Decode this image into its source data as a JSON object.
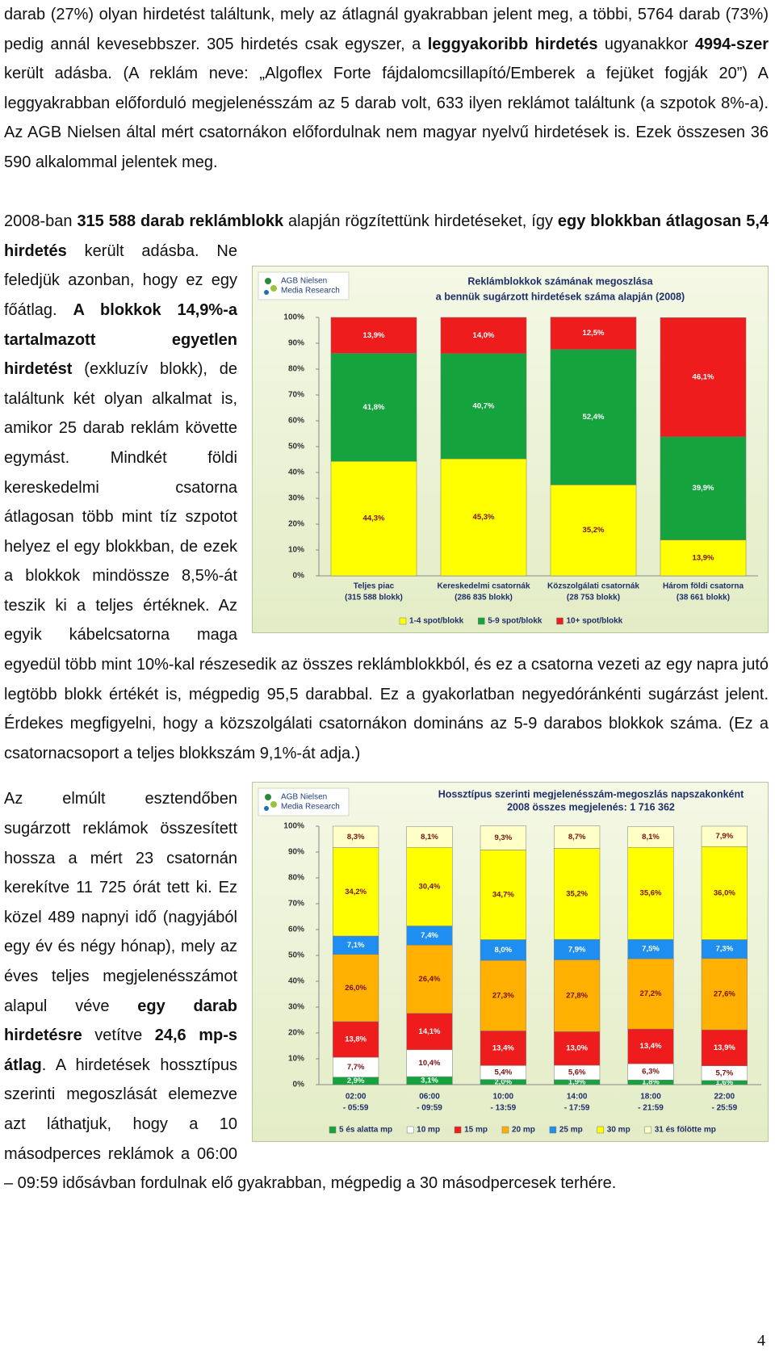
{
  "paragraphs": [
    [
      "darab (27%) olyan hirdetést találtunk, mely az átlagnál gyakrabban jelent meg, a többi, 5764 darab (73%) pedig annál kevesebbszer. 305 hirdetés csak egyszer, a ",
      "leggyakoribb hirdetés",
      " ugyanakkor ",
      "4994-szer",
      " került adásba. (A reklám neve: „Algoflex Forte fájdalomcsillapító/Emberek a fejüket fogják 20”) A leggyakrabban előforduló megjelenésszám az 5 darab volt, 633 ilyen reklámot találtunk (a szpotok 8%-a). Az AGB Nielsen által mért csatornákon előfordulnak nem magyar nyelvű hirdetések is. Ezek összesen 36 590 alkalommal jelentek meg."
    ],
    [
      "2008-ban ",
      "315 588 darab reklámblokk",
      " alapján rögzítettünk hirdetéseket, így ",
      "egy blokkban átlagosan 5,4 hirdetés",
      " került adásba. Ne feledjük azonban, hogy ez egy főátlag. ",
      "A blokkok 14,9%-a tartalmazott egyetlen hirdetést",
      " (exkluzív blokk), de találtunk két olyan alkalmat is, amikor 25 darab reklám követte egymást. Mindkét földi kereskedelmi csatorna átlagosan több mint tíz szpotot helyez el egy blokkban, de ezek a blokkok mindössze 8,5%-át teszik ki a teljes értéknek. Az egyik kábelcsatorna maga egyedül több mint 10%-kal részesedik az összes reklámblokkból, és ez a csatorna vezeti az egy napra jutó legtöbb blokk értékét is, mégpedig 95,5 darabbal. Ez a gyakorlatban negyedóránkénti sugárzást jelent. Érdekes megfigyelni, hogy a közszolgálati csatornákon domináns az 5-9 darabos blokkok száma. (Ez a csatornacsoport a teljes blokkszám 9,1%-át adja.)"
    ],
    [
      "Az elmúlt esztendőben sugárzott reklámok összesített hossza a mért 23 csatornán kerekítve 11 725 órát tett ki. Ez közel 489 napnyi idő (nagyjából egy év és négy hónap), mely az éves teljes megjelenésszámot alapul véve ",
      "egy darab hirdetésre",
      " vetítve ",
      "24,6 mp-s átlag",
      ". A hirdetések hossztípus szerinti megoszlását elemezve azt láthatjuk, hogy a 10 másodperces reklámok a 06:00 – 09:59 idősávban fordulnak elő gyakrabban, mégpedig a 30 másodpercesek terhére."
    ]
  ],
  "page_number": "4",
  "chart_data": [
    {
      "type": "bar",
      "stacked": true,
      "logo": [
        "AGB Nielsen",
        "Media Research"
      ],
      "title": [
        "Reklámblokkok számának megoszlása",
        "a bennük sugárzott hirdetések száma alapján (2008)"
      ],
      "categories": [
        [
          "Teljes piac",
          "(315 588 blokk)"
        ],
        [
          "Kereskedelmi csatornák",
          "(286 835 blokk)"
        ],
        [
          "Közszolgálati csatornák",
          "(28 753 blokk)"
        ],
        [
          "Három földi csatorna",
          "(38 661 blokk)"
        ]
      ],
      "ylim": [
        0,
        100
      ],
      "yticks": [
        {
          "value": 0,
          "label": "0%"
        },
        {
          "value": 10,
          "label": "10%"
        },
        {
          "value": 20,
          "label": "20%"
        },
        {
          "value": 30,
          "label": "30%"
        },
        {
          "value": 40,
          "label": "40%"
        },
        {
          "value": 50,
          "label": "50%"
        },
        {
          "value": 60,
          "label": "60%"
        },
        {
          "value": 70,
          "label": "70%"
        },
        {
          "value": 80,
          "label": "80%"
        },
        {
          "value": 90,
          "label": "90%"
        },
        {
          "value": 100,
          "label": "100%"
        }
      ],
      "series": [
        {
          "name": "1-4 spot/blokk",
          "color": "#ffff00",
          "values": [
            44.3,
            45.3,
            35.2,
            13.9
          ],
          "value_labels": [
            "44,3%",
            "45,3%",
            "35,2%",
            "13,9%"
          ]
        },
        {
          "name": "5-9 spot/blokk",
          "color": "#14a33c",
          "values": [
            41.8,
            40.7,
            52.4,
            39.9
          ],
          "value_labels": [
            "41,8%",
            "40,7%",
            "52,4%",
            "39,9%"
          ]
        },
        {
          "name": "10+ spot/blokk",
          "color": "#ee1c1c",
          "values": [
            13.9,
            14.0,
            12.5,
            46.1
          ],
          "value_labels": [
            "13,9%",
            "14,0%",
            "12,5%",
            "46,1%"
          ]
        }
      ]
    },
    {
      "type": "bar",
      "stacked": true,
      "logo": [
        "AGB Nielsen",
        "Media Research"
      ],
      "title": [
        "Hossztípus szerinti megjelenésszám-megoszlás napszakonként",
        "2008 összes megjelenés: 1 716 362"
      ],
      "categories": [
        [
          "02:00",
          "- 05:59"
        ],
        [
          "06:00",
          "- 09:59"
        ],
        [
          "10:00",
          "- 13:59"
        ],
        [
          "14:00",
          "- 17:59"
        ],
        [
          "18:00",
          "- 21:59"
        ],
        [
          "22:00",
          "- 25:59"
        ]
      ],
      "ylim": [
        0,
        100
      ],
      "yticks": [
        {
          "value": 0,
          "label": "0%"
        },
        {
          "value": 10,
          "label": "10%"
        },
        {
          "value": 20,
          "label": "20%"
        },
        {
          "value": 30,
          "label": "30%"
        },
        {
          "value": 40,
          "label": "40%"
        },
        {
          "value": 50,
          "label": "50%"
        },
        {
          "value": 60,
          "label": "60%"
        },
        {
          "value": 70,
          "label": "70%"
        },
        {
          "value": 80,
          "label": "80%"
        },
        {
          "value": 90,
          "label": "90%"
        },
        {
          "value": 100,
          "label": "100%"
        }
      ],
      "series": [
        {
          "name": "5 és alatta mp",
          "color": "#14a33c",
          "values": [
            2.9,
            3.1,
            2.0,
            1.9,
            1.8,
            1.6
          ],
          "value_labels": [
            "2,9%",
            "3,1%",
            "2,0%",
            "1,9%",
            "1,8%",
            "1,6%"
          ]
        },
        {
          "name": "10 mp",
          "color": "#ffffff",
          "values": [
            7.7,
            10.4,
            5.4,
            5.6,
            6.3,
            5.7
          ],
          "value_labels": [
            "7,7%",
            "10,4%",
            "5,4%",
            "5,6%",
            "6,3%",
            "5,7%"
          ]
        },
        {
          "name": "15 mp",
          "color": "#ee1c1c",
          "values": [
            13.8,
            14.1,
            13.4,
            13.0,
            13.4,
            13.9
          ],
          "value_labels": [
            "13,8%",
            "14,1%",
            "13,4%",
            "13,0%",
            "13,4%",
            "13,9%"
          ]
        },
        {
          "name": "20 mp",
          "color": "#ffb000",
          "values": [
            26.0,
            26.4,
            27.3,
            27.8,
            27.2,
            27.6
          ],
          "value_labels": [
            "26,0%",
            "26,4%",
            "27,3%",
            "27,8%",
            "27,2%",
            "27,6%"
          ]
        },
        {
          "name": "25 mp",
          "color": "#1e8ff0",
          "values": [
            7.1,
            7.4,
            8.0,
            7.9,
            7.5,
            7.3
          ],
          "value_labels": [
            "7,1%",
            "7,4%",
            "8,0%",
            "7,9%",
            "7,5%",
            "7,3%"
          ]
        },
        {
          "name": "30 mp",
          "color": "#ffff00",
          "values": [
            34.2,
            30.4,
            34.7,
            35.2,
            35.6,
            36.0
          ],
          "value_labels": [
            "34,2%",
            "30,4%",
            "34,7%",
            "35,2%",
            "35,6%",
            "36,0%"
          ]
        },
        {
          "name": "31 és fölötte mp",
          "color": "#ffffc8",
          "values": [
            8.3,
            8.1,
            9.3,
            8.7,
            8.1,
            7.9
          ],
          "value_labels": [
            "8,3%",
            "8,1%",
            "9,3%",
            "8,7%",
            "8,1%",
            "7,9%"
          ]
        }
      ]
    }
  ]
}
